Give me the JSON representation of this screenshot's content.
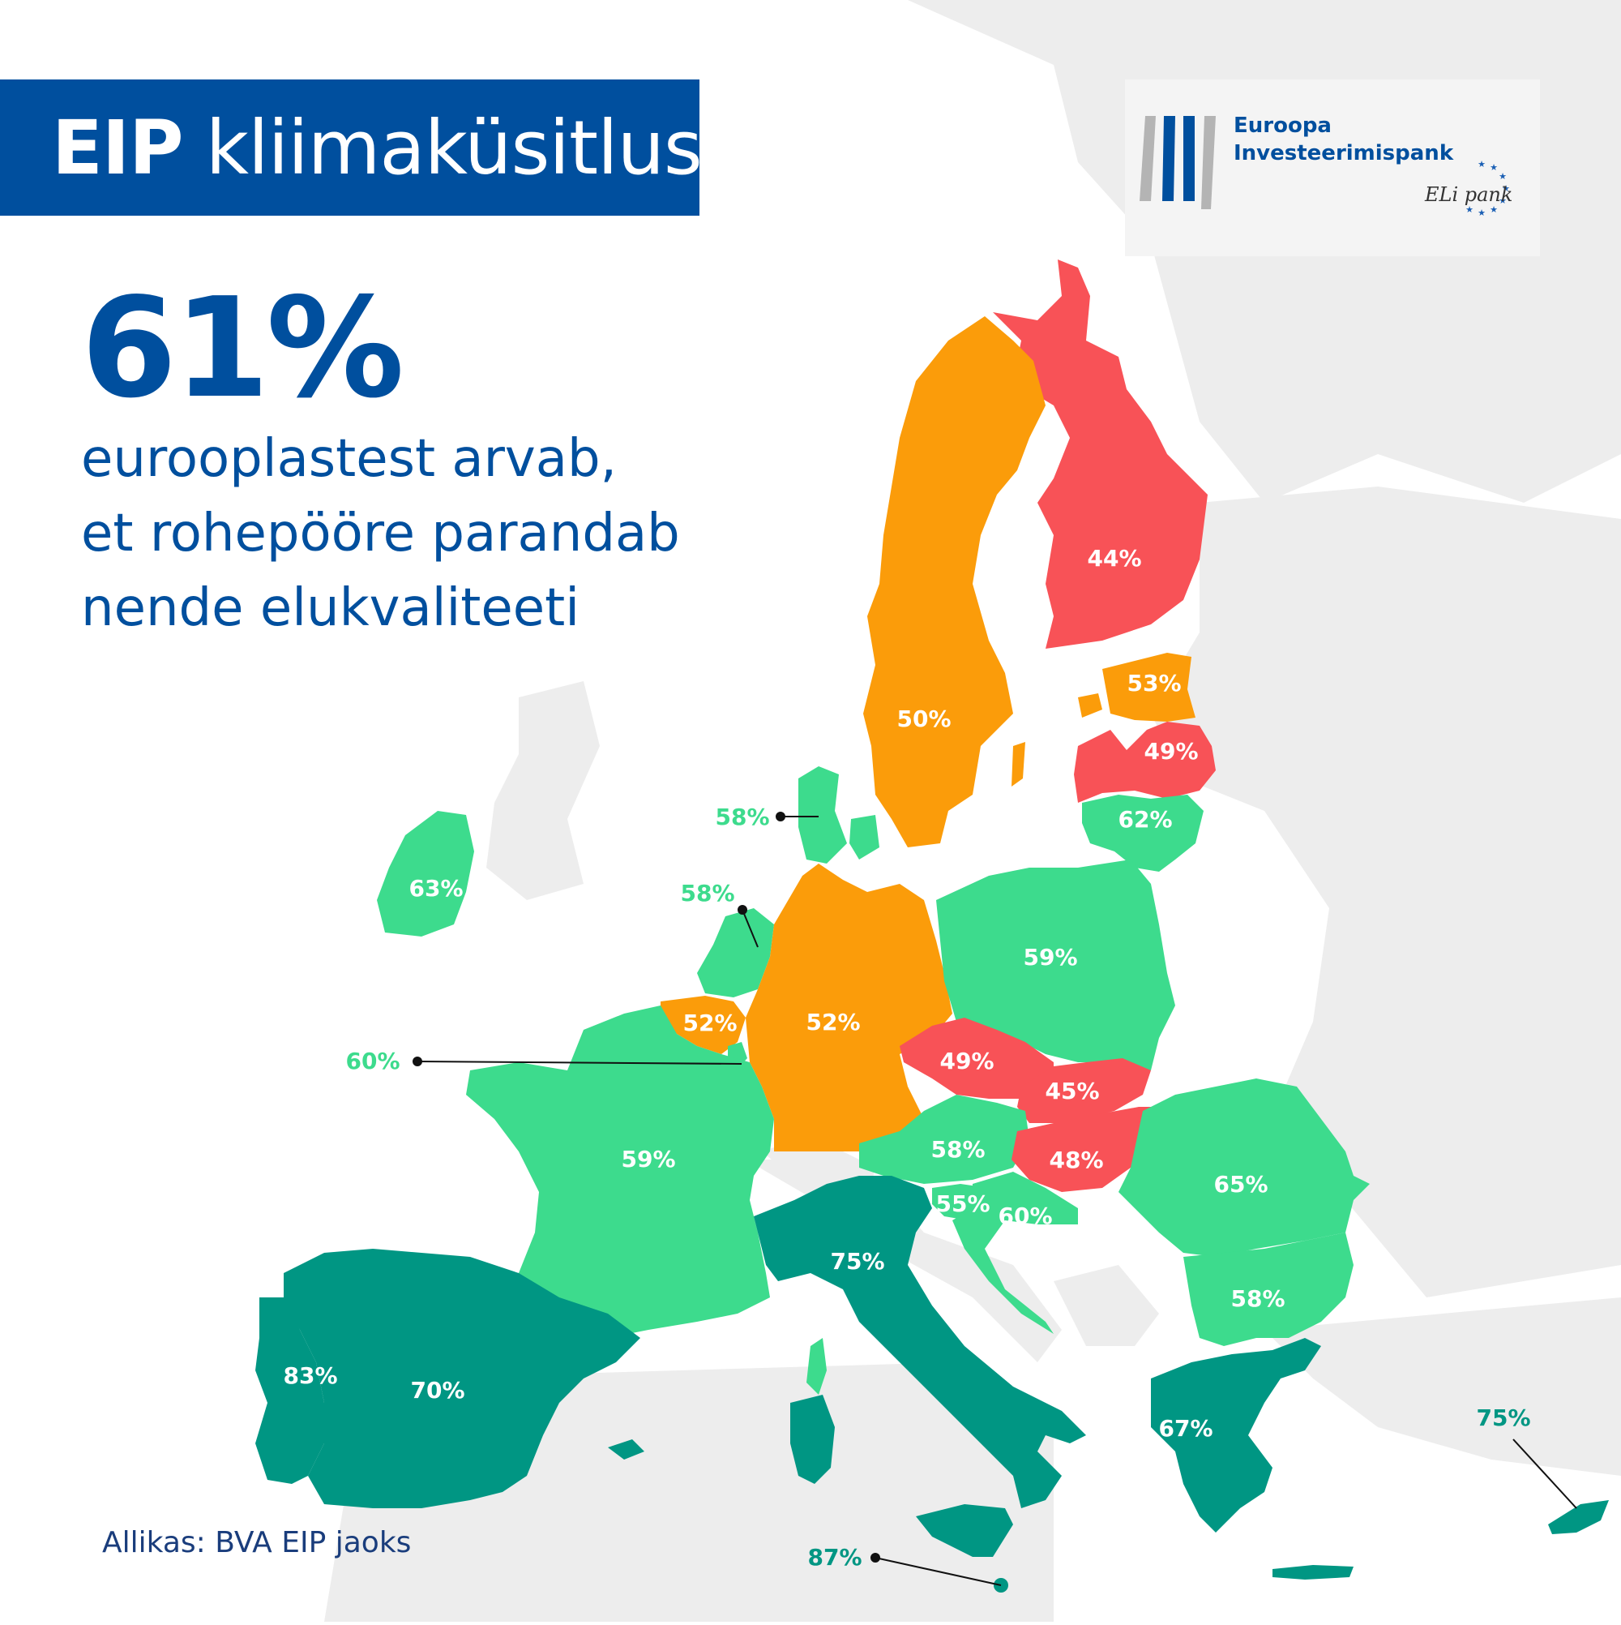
{
  "header": {
    "title_bold": "EIP",
    "title_rest": "kliimaküsitlus"
  },
  "headline": {
    "stat": "61%",
    "lines": [
      "eurooplastest arvab,",
      "et rohepööre parandab",
      "nende elukvaliteeti"
    ]
  },
  "logo": {
    "line1": "Euroopa",
    "line2": "Investeerimispank",
    "tagline": "ELi pank"
  },
  "source": "Allikas: BVA EIP jaoks",
  "colors": {
    "title_bg": "#004f9e",
    "text_blue": "#004f9e",
    "red": "#f85257",
    "orange": "#fb9c0a",
    "light_green": "#3ddb8d",
    "dark_green": "#009683",
    "background_land": "#ededed"
  },
  "countries": [
    {
      "name": "Finland",
      "value": "44%"
    },
    {
      "name": "Sweden",
      "value": "50%"
    },
    {
      "name": "Estonia",
      "value": "53%"
    },
    {
      "name": "Latvia",
      "value": "49%"
    },
    {
      "name": "Lithuania",
      "value": "62%"
    },
    {
      "name": "Denmark",
      "value": "58%"
    },
    {
      "name": "Ireland",
      "value": "63%"
    },
    {
      "name": "Netherlands",
      "value": "58%"
    },
    {
      "name": "Belgium",
      "value": "52%"
    },
    {
      "name": "Luxembourg",
      "value": "60%"
    },
    {
      "name": "Germany",
      "value": "52%"
    },
    {
      "name": "Poland",
      "value": "59%"
    },
    {
      "name": "Czechia",
      "value": "49%"
    },
    {
      "name": "Slovakia",
      "value": "45%"
    },
    {
      "name": "Austria",
      "value": "58%"
    },
    {
      "name": "Hungary",
      "value": "48%"
    },
    {
      "name": "Slovenia",
      "value": "55%"
    },
    {
      "name": "Croatia",
      "value": "60%"
    },
    {
      "name": "Romania",
      "value": "65%"
    },
    {
      "name": "Bulgaria",
      "value": "58%"
    },
    {
      "name": "France",
      "value": "59%"
    },
    {
      "name": "Italy",
      "value": "75%"
    },
    {
      "name": "Spain",
      "value": "70%"
    },
    {
      "name": "Portugal",
      "value": "83%"
    },
    {
      "name": "Greece",
      "value": "67%"
    },
    {
      "name": "Cyprus",
      "value": "75%"
    },
    {
      "name": "Malta",
      "value": "87%"
    }
  ]
}
